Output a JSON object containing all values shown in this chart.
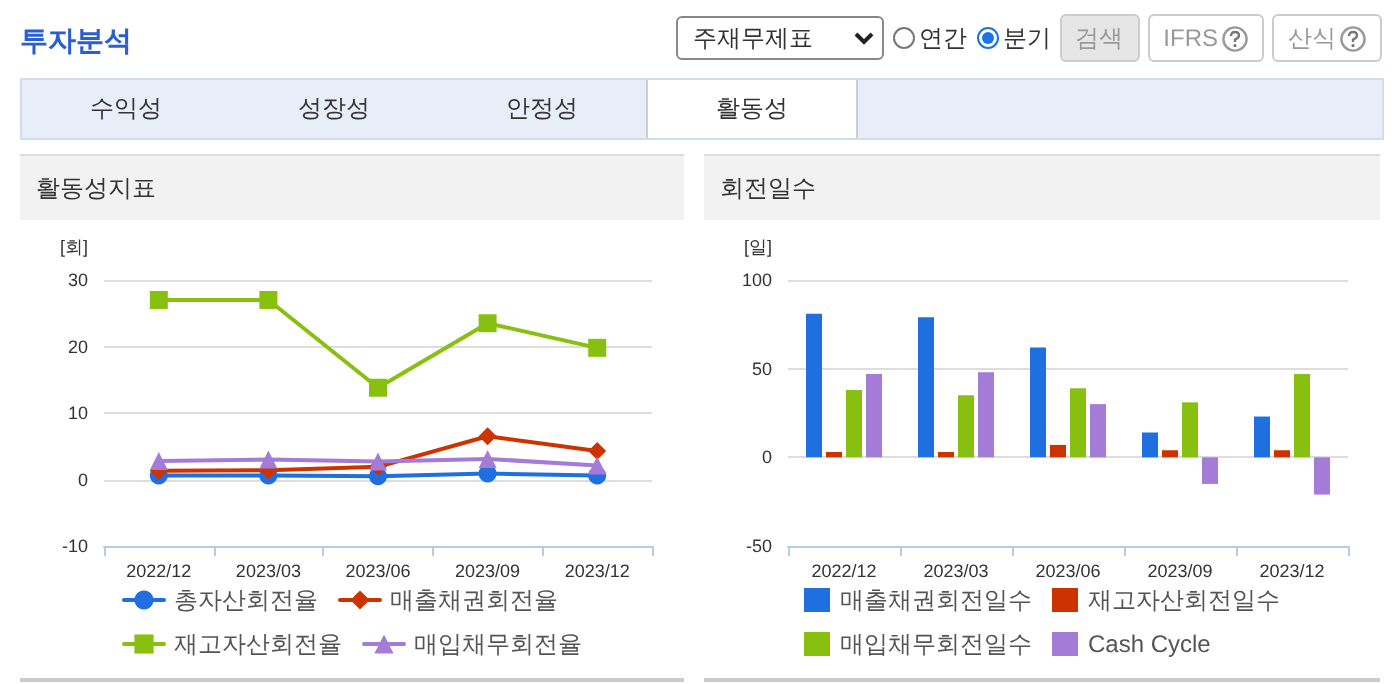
{
  "chart_data": [
    {
      "type": "other",
      "title": "투자분석",
      "annotations": [
        "주재무제표",
        "연간",
        "분기",
        "검색",
        "IFRS",
        "산식",
        "수익성",
        "성장성",
        "안정성",
        "활동성"
      ]
    },
    {
      "type": "line",
      "title": "활동성지표",
      "ylabel": "[회]",
      "categories": [
        "2022/12",
        "2023/03",
        "2023/06",
        "2023/09",
        "2023/12"
      ],
      "series": [
        {
          "name": "총자산회전율",
          "color": "#1f6fe0",
          "marker": "circle",
          "values": [
            0.6,
            0.6,
            0.5,
            0.9,
            0.6
          ]
        },
        {
          "name": "매출채권회전율",
          "color": "#cc3300",
          "marker": "diamond",
          "values": [
            1.3,
            1.4,
            1.9,
            6.5,
            4.3
          ]
        },
        {
          "name": "재고자산회전율",
          "color": "#88c010",
          "marker": "square",
          "values": [
            27.0,
            27.0,
            13.8,
            23.5,
            19.8
          ]
        },
        {
          "name": "매입채무회전율",
          "color": "#a57bd8",
          "marker": "triangle",
          "values": [
            2.8,
            3.0,
            2.7,
            3.1,
            2.1
          ]
        }
      ],
      "ylim": [
        -10,
        30
      ],
      "yticks": [
        -10,
        0,
        10,
        20,
        30
      ],
      "grid": "y",
      "legend": "bottom"
    },
    {
      "type": "bar",
      "title": "회전일수",
      "ylabel": "[일]",
      "categories": [
        "2022/12",
        "2023/03",
        "2023/06",
        "2023/09",
        "2023/12"
      ],
      "series": [
        {
          "name": "매출채권회전일수",
          "color": "#1f6fe0",
          "values": [
            81,
            79,
            62,
            14,
            23
          ]
        },
        {
          "name": "재고자산회전일수",
          "color": "#cc3300",
          "values": [
            3,
            3,
            7,
            4,
            4
          ]
        },
        {
          "name": "매입채무회전일수",
          "color": "#88c010",
          "values": [
            38,
            35,
            39,
            31,
            47
          ]
        },
        {
          "name": "Cash Cycle",
          "color": "#a57bd8",
          "values": [
            47,
            48,
            30,
            -15,
            -21
          ]
        }
      ],
      "ylim": [
        -50,
        100
      ],
      "yticks": [
        -50,
        0,
        50,
        100
      ],
      "grid": "y",
      "legend": "bottom"
    }
  ]
}
